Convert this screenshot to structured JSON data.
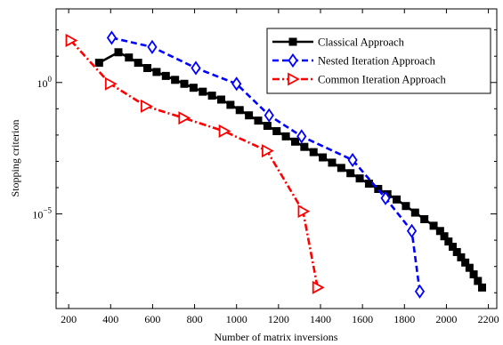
{
  "chart_data": {
    "type": "line",
    "xlabel": "Number of matrix inversions",
    "ylabel": "Stopping criterion",
    "xlim": [
      140,
      2240
    ],
    "x_ticks": [
      200,
      400,
      600,
      800,
      1000,
      1200,
      1400,
      1600,
      1800,
      2000,
      2200
    ],
    "y_scale": "log",
    "ylim_exponent": [
      -8.6,
      2.8
    ],
    "y_ticks": [
      {
        "exponent": 0,
        "base": "10",
        "sup": "0"
      },
      {
        "exponent": -5,
        "base": "10",
        "sup": "−5"
      }
    ],
    "legend_position": "top-right",
    "series": [
      {
        "name": "Classical Approach",
        "color": "#000000",
        "dash": "solid",
        "marker": "square",
        "x": [
          345,
          437,
          487,
          531,
          575,
          619,
          663,
          707,
          751,
          795,
          839,
          883,
          927,
          971,
          1015,
          1059,
          1103,
          1147,
          1191,
          1235,
          1279,
          1323,
          1367,
          1411,
          1455,
          1499,
          1543,
          1587,
          1631,
          1675,
          1719,
          1763,
          1807,
          1851,
          1895,
          1939,
          1970,
          1990,
          2010,
          2030,
          2050,
          2070,
          2090,
          2110,
          2130,
          2150,
          2170
        ],
        "log10_y": [
          0.75,
          1.15,
          0.95,
          0.75,
          0.55,
          0.4,
          0.25,
          0.1,
          -0.05,
          -0.2,
          -0.35,
          -0.5,
          -0.65,
          -0.85,
          -1.05,
          -1.25,
          -1.45,
          -1.65,
          -1.85,
          -2.05,
          -2.25,
          -2.45,
          -2.65,
          -2.85,
          -3.05,
          -3.25,
          -3.45,
          -3.65,
          -3.85,
          -4.05,
          -4.25,
          -4.45,
          -4.7,
          -4.95,
          -5.2,
          -5.45,
          -5.65,
          -5.85,
          -6.05,
          -6.25,
          -6.45,
          -6.65,
          -6.85,
          -7.05,
          -7.3,
          -7.55,
          -7.8
        ]
      },
      {
        "name": "Nested Iteration Approach",
        "color": "#0000ff",
        "dash": "dashed",
        "marker": "diamond",
        "x": [
          405,
          598,
          806,
          1000,
          1155,
          1310,
          1553,
          1710,
          1835,
          1873
        ],
        "log10_y": [
          1.7,
          1.35,
          0.55,
          -0.05,
          -1.25,
          -2.05,
          -2.95,
          -4.4,
          -5.65,
          -7.95
        ]
      },
      {
        "name": "Common Iteration Approach",
        "color": "#ff0000",
        "dash": "dashdot",
        "marker": "triangle-right",
        "x": [
          210,
          398,
          568,
          748,
          940,
          1145,
          1317,
          1386
        ],
        "log10_y": [
          1.6,
          -0.05,
          -0.9,
          -1.35,
          -1.85,
          -2.6,
          -4.9,
          -7.8
        ]
      }
    ]
  }
}
